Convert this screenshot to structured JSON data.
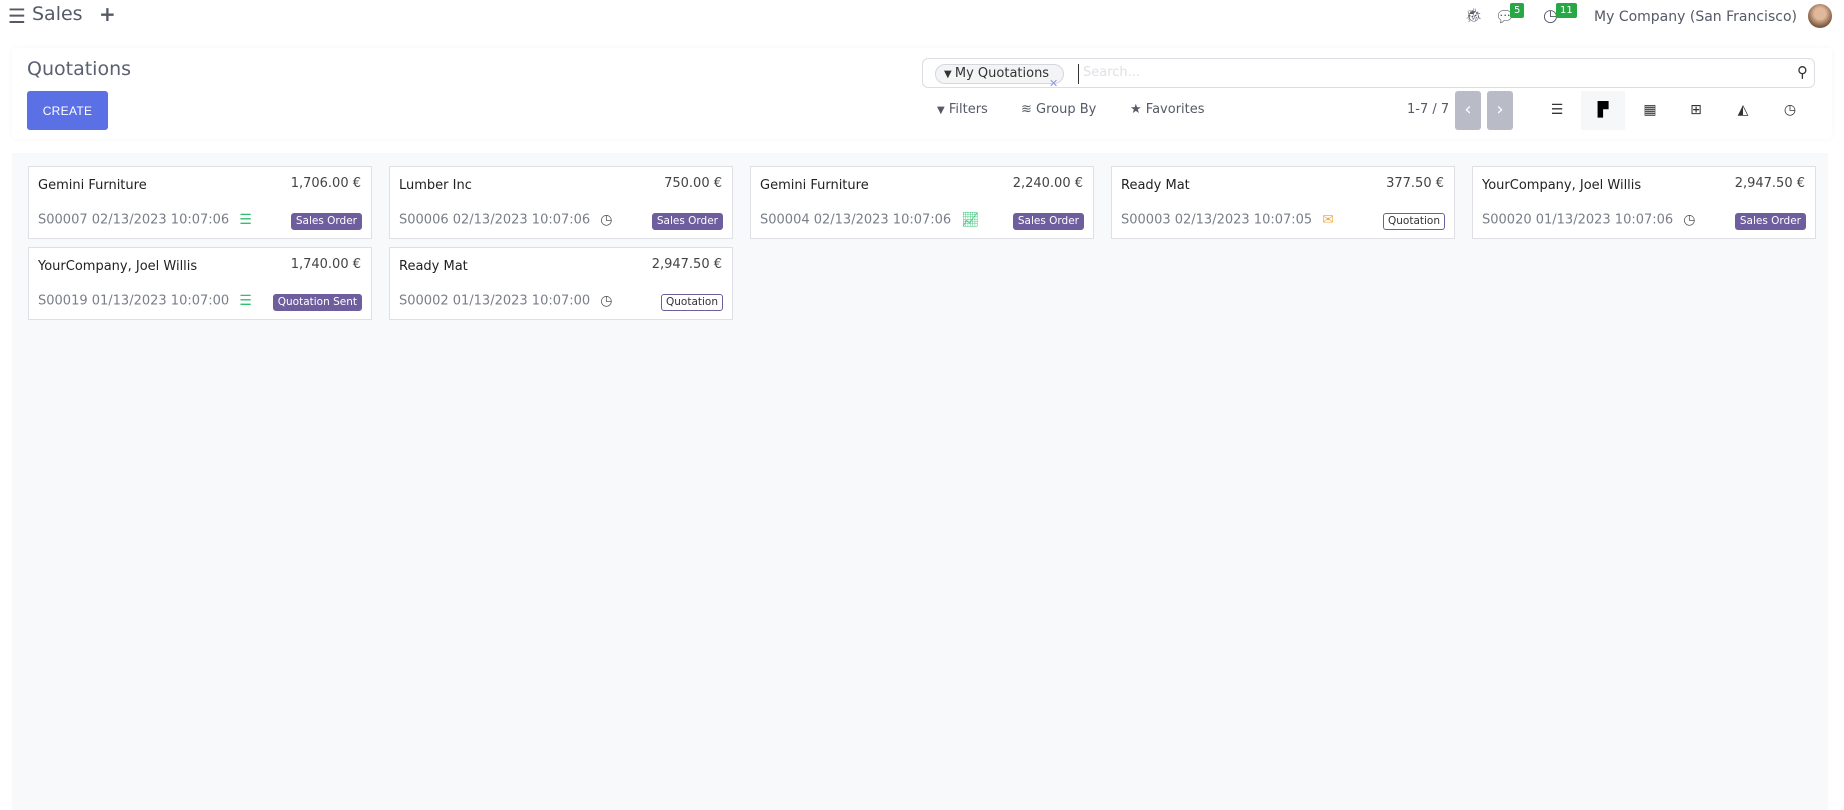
{
  "topbar": {
    "app_name": "Sales",
    "company": "My Company (San Francisco)",
    "messages_count": "5",
    "activities_count": "11"
  },
  "control_panel": {
    "title": "Quotations",
    "create_label": "CREATE",
    "facet": "My Quotations",
    "search_placeholder": "Search...",
    "filters": "Filters",
    "group_by": "Group By",
    "favorites": "Favorites",
    "pager": "1-7 / 7",
    "active_view": "kanban"
  },
  "colors": {
    "primary": "#5a70e4",
    "tag": "#6f5e9e",
    "badge": "#28a745"
  },
  "cards": [
    {
      "name": "Gemini Furniture",
      "amount": "1,706.00 €",
      "ref": "S00007 02/13/2023 10:07:06",
      "activity": "tasks-icon",
      "tag": "Sales Order",
      "tag_style": "filled"
    },
    {
      "name": "Lumber Inc",
      "amount": "750.00 €",
      "ref": "S00006 02/13/2023 10:07:06",
      "activity": "clock-icon",
      "tag": "Sales Order",
      "tag_style": "filled"
    },
    {
      "name": "Gemini Furniture",
      "amount": "2,240.00 €",
      "ref": "S00004 02/13/2023 10:07:06",
      "activity": "chart-line-icon",
      "tag": "Sales Order",
      "tag_style": "filled"
    },
    {
      "name": "Ready Mat",
      "amount": "377.50 €",
      "ref": "S00003 02/13/2023 10:07:05",
      "activity": "envelope-icon",
      "tag": "Quotation",
      "tag_style": "outline"
    },
    {
      "name": "YourCompany, Joel Willis",
      "amount": "2,947.50 €",
      "ref": "S00020 01/13/2023 10:07:06",
      "activity": "clock-icon",
      "tag": "Sales Order",
      "tag_style": "filled"
    },
    {
      "name": "YourCompany, Joel Willis",
      "amount": "1,740.00 €",
      "ref": "S00019 01/13/2023 10:07:00",
      "activity": "tasks-icon",
      "tag": "Quotation Sent",
      "tag_style": "filled"
    },
    {
      "name": "Ready Mat",
      "amount": "2,947.50 €",
      "ref": "S00002 01/13/2023 10:07:00",
      "activity": "clock-icon",
      "tag": "Quotation",
      "tag_style": "outline"
    }
  ]
}
